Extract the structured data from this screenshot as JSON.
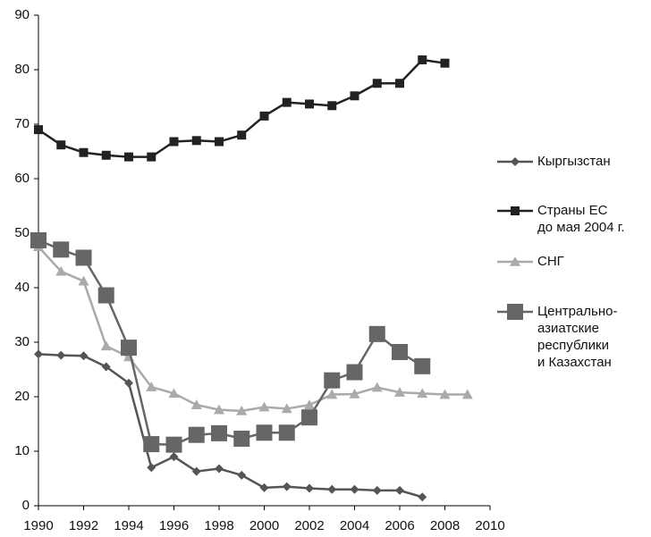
{
  "chart_data": {
    "type": "line",
    "x": [
      1990,
      1991,
      1992,
      1993,
      1994,
      1995,
      1996,
      1997,
      1998,
      1999,
      2000,
      2001,
      2002,
      2003,
      2004,
      2005,
      2006,
      2007,
      2008,
      2009
    ],
    "series": [
      {
        "name": "Кыргызстан",
        "color": "#555555",
        "marker": "diamond",
        "marker_size": 5,
        "values": [
          27.8,
          27.6,
          27.5,
          25.5,
          22.5,
          7,
          9,
          6.3,
          6.8,
          5.6,
          3.3,
          3.5,
          3.2,
          3,
          3,
          2.8,
          2.8,
          1.6,
          null,
          null
        ]
      },
      {
        "name": "Страны ЕС\nдо мая 2004 г.",
        "color": "#222222",
        "marker": "square",
        "marker_size": 5,
        "values": [
          69,
          66.2,
          64.8,
          64.3,
          64,
          64,
          66.8,
          67,
          66.8,
          68,
          71.5,
          74,
          73.7,
          73.4,
          75.2,
          77.5,
          77.5,
          81.8,
          81.2,
          null
        ]
      },
      {
        "name": "СНГ",
        "color": "#aaaaaa",
        "marker": "triangle",
        "marker_size": 6,
        "values": [
          47.5,
          43,
          41.2,
          29.3,
          27.3,
          21.8,
          20.6,
          18.5,
          17.6,
          17.4,
          18.1,
          17.8,
          18.5,
          20.4,
          20.5,
          21.7,
          20.8,
          20.6,
          20.4,
          20.4
        ]
      },
      {
        "name": "Центрально-\nазиатские\nреспублики\nи Казахстан",
        "color": "#666666",
        "marker": "square",
        "marker_size": 9,
        "values": [
          48.7,
          47,
          45.5,
          38.6,
          29,
          11.3,
          11.2,
          13,
          13.3,
          12.3,
          13.4,
          13.4,
          16.2,
          23,
          24.5,
          31.5,
          28.2,
          25.6,
          null,
          null
        ]
      }
    ],
    "xlim": [
      1990,
      2010
    ],
    "xticks": [
      1990,
      1992,
      1994,
      1996,
      1998,
      2000,
      2002,
      2004,
      2006,
      2008,
      2010
    ],
    "ylim": [
      0,
      90
    ],
    "yticks": [
      0,
      10,
      20,
      30,
      40,
      50,
      60,
      70,
      80,
      90
    ],
    "grid": false,
    "legend": "right"
  }
}
